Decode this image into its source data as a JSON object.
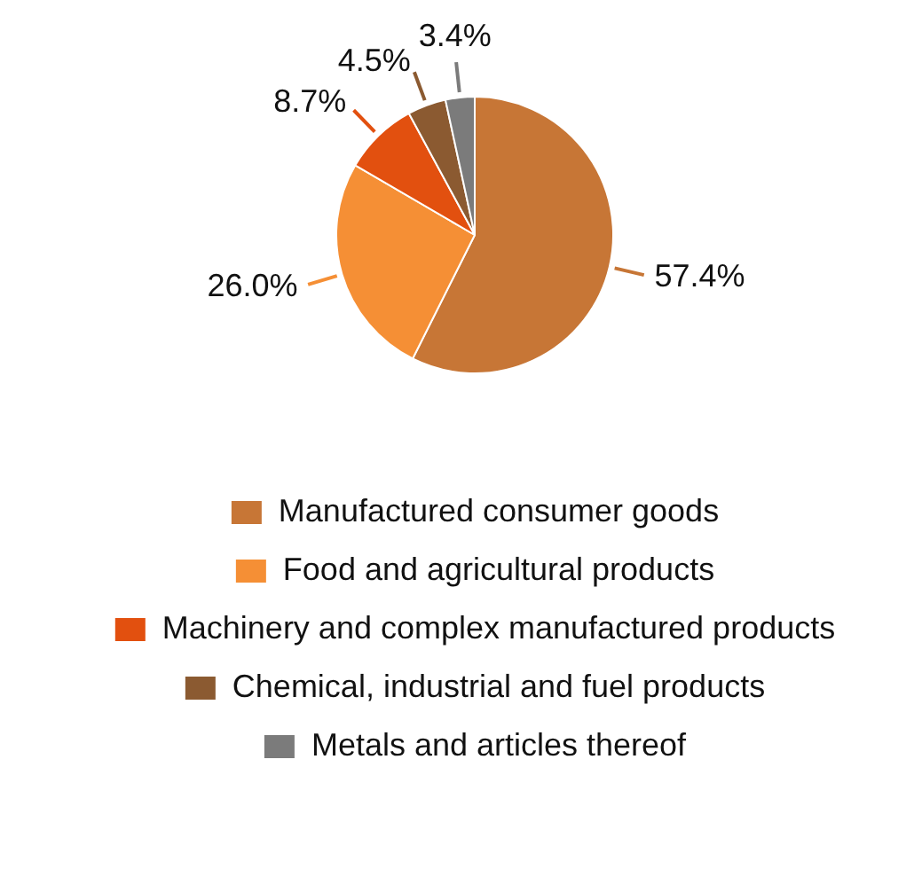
{
  "chart_data": {
    "type": "pie",
    "categories": [
      "Manufactured consumer goods",
      "Food and agricultural products",
      "Machinery and complex manufactured products",
      "Chemical, industrial and fuel products",
      "Metals and articles thereof"
    ],
    "values": [
      57.4,
      26.0,
      8.7,
      4.5,
      3.4
    ],
    "colors": [
      "#c77636",
      "#f58f35",
      "#e2500f",
      "#8b5a31",
      "#7b7b7b"
    ],
    "value_labels": [
      "57.4%",
      "26.0%",
      "8.7%",
      "4.5%",
      "3.4%"
    ],
    "legend": "bottom"
  }
}
